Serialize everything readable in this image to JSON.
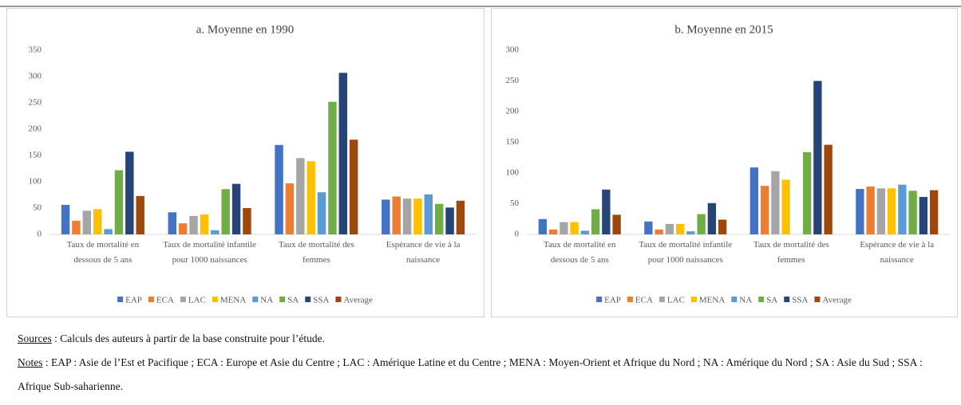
{
  "chart_data": [
    {
      "type": "bar",
      "title": "a. Moyenne en 1990",
      "categories": [
        "Taux de mortalité en dessous de 5 ans",
        "Taux de mortalité infantile pour 1000 naissances",
        "Taux de mortalité des femmes",
        "Espérance de vie à la naissance"
      ],
      "series": [
        {
          "name": "EAP",
          "color": "#4472c4",
          "values": [
            56,
            42,
            170,
            66
          ]
        },
        {
          "name": "ECA",
          "color": "#ed7d31",
          "values": [
            26,
            21,
            97,
            72
          ]
        },
        {
          "name": "LAC",
          "color": "#a5a5a5",
          "values": [
            45,
            35,
            145,
            68
          ]
        },
        {
          "name": "MENA",
          "color": "#ffc000",
          "values": [
            48,
            38,
            139,
            68
          ]
        },
        {
          "name": "NA",
          "color": "#5b9bd5",
          "values": [
            10,
            8,
            80,
            76
          ]
        },
        {
          "name": "SA",
          "color": "#70ad47",
          "values": [
            122,
            86,
            252,
            58
          ]
        },
        {
          "name": "SSA",
          "color": "#264478",
          "values": [
            157,
            96,
            307,
            51
          ]
        },
        {
          "name": "Average",
          "color": "#9e480e",
          "values": [
            73,
            50,
            180,
            64
          ]
        }
      ],
      "ylim": [
        0,
        350
      ],
      "yticks": [
        0,
        50,
        100,
        150,
        200,
        250,
        300,
        350
      ],
      "grid": false,
      "legend": "bottom"
    },
    {
      "type": "bar",
      "title": "b. Moyenne en 2015",
      "categories": [
        "Taux de mortalité en dessous de 5 ans",
        "Taux de mortalité infantile pour 1000 naissances",
        "Taux de mortalité des femmes",
        "Espérance de vie à la naissance"
      ],
      "series": [
        {
          "name": "EAP",
          "color": "#4472c4",
          "values": [
            25,
            21,
            109,
            74
          ]
        },
        {
          "name": "ECA",
          "color": "#ed7d31",
          "values": [
            8,
            8,
            79,
            78
          ]
        },
        {
          "name": "LAC",
          "color": "#a5a5a5",
          "values": [
            20,
            17,
            103,
            75
          ]
        },
        {
          "name": "MENA",
          "color": "#ffc000",
          "values": [
            20,
            17,
            89,
            75
          ]
        },
        {
          "name": "NA",
          "color": "#5b9bd5",
          "values": [
            6,
            5,
            null,
            81
          ]
        },
        {
          "name": "SA",
          "color": "#70ad47",
          "values": [
            41,
            33,
            134,
            71
          ]
        },
        {
          "name": "SSA",
          "color": "#264478",
          "values": [
            73,
            51,
            250,
            61
          ]
        },
        {
          "name": "Average",
          "color": "#9e480e",
          "values": [
            32,
            24,
            146,
            72
          ]
        }
      ],
      "ylim": [
        0,
        300
      ],
      "yticks": [
        0,
        50,
        100,
        150,
        200,
        250,
        300
      ],
      "grid": false,
      "legend": "bottom"
    }
  ],
  "notes": {
    "sources_label": "Sources",
    "sources_text": " : Calculs des auteurs à partir de la base construite pour l’étude.",
    "notes_label": "Notes",
    "notes_text": " : EAP : Asie de l’Est et Pacifique ; ECA : Europe et Asie du Centre ; LAC : Amérique Latine et du Centre ; MENA : Moyen-Orient et Afrique du Nord ; NA : Amérique du Nord ; SA : Asie du Sud ; SSA : Afrique Sub-saharienne."
  }
}
